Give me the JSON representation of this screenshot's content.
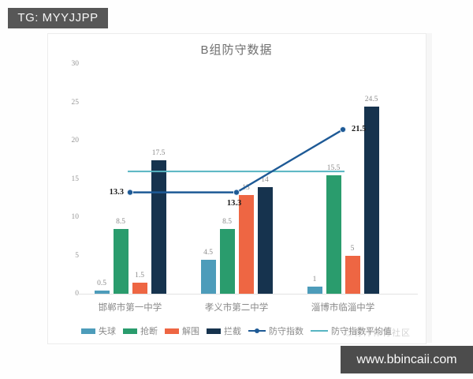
{
  "badges": {
    "tg": "TG: MYYJJPP",
    "site": "www.bbincaii.com"
  },
  "watermark": "◎籽汗体育社区",
  "chart_data": {
    "type": "bar",
    "title": "B组防守数据",
    "categories": [
      "邯郸市第一中学",
      "孝义市第二中学",
      "淄博市临淄中学"
    ],
    "series": [
      {
        "name": "失球",
        "type": "bar",
        "color": "#4d9cba",
        "values": [
          0.5,
          4.5,
          1
        ]
      },
      {
        "name": "抢断",
        "type": "bar",
        "color": "#2a9c6d",
        "values": [
          8.5,
          8.5,
          15.5
        ]
      },
      {
        "name": "解围",
        "type": "bar",
        "color": "#ee6643",
        "values": [
          1.5,
          13,
          5
        ]
      },
      {
        "name": "拦截",
        "type": "bar",
        "color": "#16334e",
        "values": [
          17.5,
          14,
          24.5
        ]
      },
      {
        "name": "防守指数",
        "type": "line",
        "color": "#1e5a96",
        "values": [
          13.3,
          13.3,
          21.5
        ]
      },
      {
        "name": "防守指数平均值",
        "type": "line-flat",
        "color": "#57b5c2",
        "average": 16.03
      }
    ],
    "y_ticks": [
      0,
      5,
      10,
      15,
      20,
      25,
      30
    ],
    "ylim": [
      0,
      30
    ],
    "grid": false,
    "legend_position": "bottom"
  }
}
